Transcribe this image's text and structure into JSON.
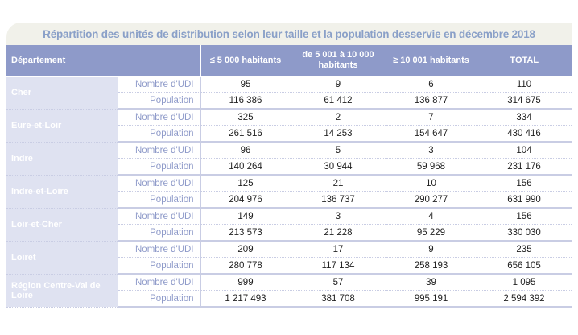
{
  "title": "Répartition des unités de distribution selon leur taille et la population desservie en décembre 2018",
  "headers": {
    "departement": "Département",
    "blank": "",
    "col1": "≤ 5 000 habitants",
    "col2": "de 5 001 à 10 000 habitants",
    "col3": "≥ 10 001 habitants",
    "total": "TOTAL"
  },
  "row_labels": {
    "udi": "Nombre d'UDI",
    "pop": "Population"
  },
  "rows": [
    {
      "dept": "Cher",
      "udi": [
        "95",
        "9",
        "6",
        "110"
      ],
      "pop": [
        "116 386",
        "61 412",
        "136 877",
        "314 675"
      ]
    },
    {
      "dept": "Eure-et-Loir",
      "udi": [
        "325",
        "2",
        "7",
        "334"
      ],
      "pop": [
        "261 516",
        "14 253",
        "154 647",
        "430 416"
      ]
    },
    {
      "dept": "Indre",
      "udi": [
        "96",
        "5",
        "3",
        "104"
      ],
      "pop": [
        "140 264",
        "30 944",
        "59 968",
        "231 176"
      ]
    },
    {
      "dept": "Indre-et-Loire",
      "udi": [
        "125",
        "21",
        "10",
        "156"
      ],
      "pop": [
        "204 976",
        "136 737",
        "290 277",
        "631 990"
      ]
    },
    {
      "dept": "Loir-et-Cher",
      "udi": [
        "149",
        "3",
        "4",
        "156"
      ],
      "pop": [
        "213 573",
        "21 228",
        "95 229",
        "330 030"
      ]
    },
    {
      "dept": "Loiret",
      "udi": [
        "209",
        "17",
        "9",
        "235"
      ],
      "pop": [
        "280 778",
        "117 134",
        "258 193",
        "656 105"
      ]
    },
    {
      "dept": "Région Centre-Val de Loire",
      "udi": [
        "999",
        "57",
        "39",
        "1 095"
      ],
      "pop": [
        "1 217 493",
        "381 708",
        "995 191",
        "2 594 392"
      ]
    }
  ],
  "colors": {
    "header_bg": "#8e9ac9",
    "dept_bg": "#dfe2f1",
    "title_color": "#8aa0c8",
    "title_bg": "#f1f1ea"
  }
}
